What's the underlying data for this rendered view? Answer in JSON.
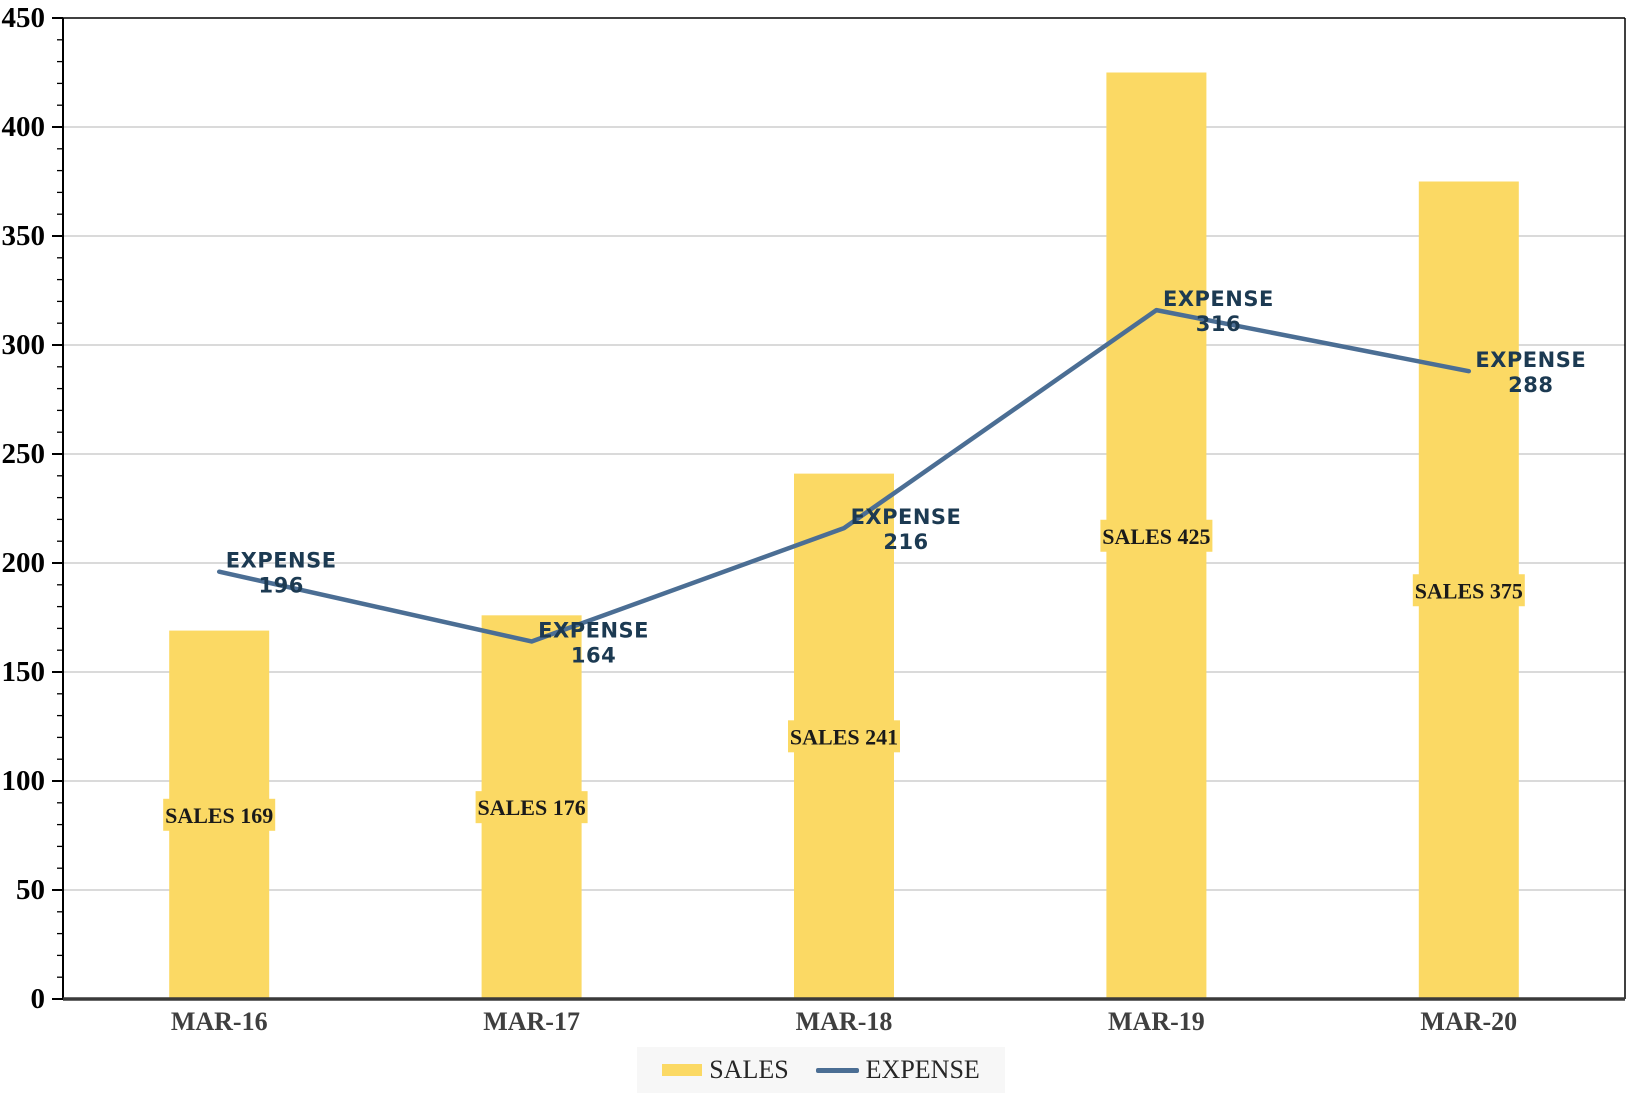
{
  "chart_data": {
    "type": "combo",
    "title": "",
    "categories": [
      "MAR-16",
      "MAR-17",
      "MAR-18",
      "MAR-19",
      "MAR-20"
    ],
    "series": [
      {
        "name": "SALES",
        "chart_type": "bar",
        "values": [
          169,
          176,
          241,
          425,
          375
        ],
        "color": "#FBD964",
        "data_labels": [
          "SALES 169",
          "SALES 176",
          "SALES 241",
          "SALES 425",
          "SALES 375"
        ]
      },
      {
        "name": "EXPENSE",
        "chart_type": "line",
        "values": [
          196,
          164,
          216,
          316,
          288
        ],
        "color": "#4B6E94",
        "data_labels": [
          [
            "EXPENSE",
            "196"
          ],
          [
            "EXPENSE",
            "164"
          ],
          [
            "EXPENSE",
            "216"
          ],
          [
            "EXPENSE",
            "316"
          ],
          [
            "EXPENSE",
            "288"
          ]
        ]
      }
    ],
    "ylim": [
      0,
      450
    ],
    "y_ticks": [
      0,
      50,
      100,
      150,
      200,
      250,
      300,
      350,
      400,
      450
    ],
    "y_major_step": 50,
    "y_minor_step": 10,
    "grid": "horizontal major gridlines on",
    "legend_position": "bottom-center",
    "xlabel": "",
    "ylabel": ""
  },
  "style": {
    "bar_fill": "#FBD964",
    "line_stroke": "#4B6E94",
    "expense_label_color": "#1C3A52",
    "sales_label_color": "#1A1A1A",
    "y_tick_label_color": "#000000",
    "x_label_color": "#3F3F3F",
    "grid_color": "#CDCDCD",
    "axis_color": "#000000",
    "baseline_color": "#3A3A3A",
    "border_color": "#000000",
    "legend_bg": "#F7F7F7",
    "legend_text_color": "#262626"
  }
}
